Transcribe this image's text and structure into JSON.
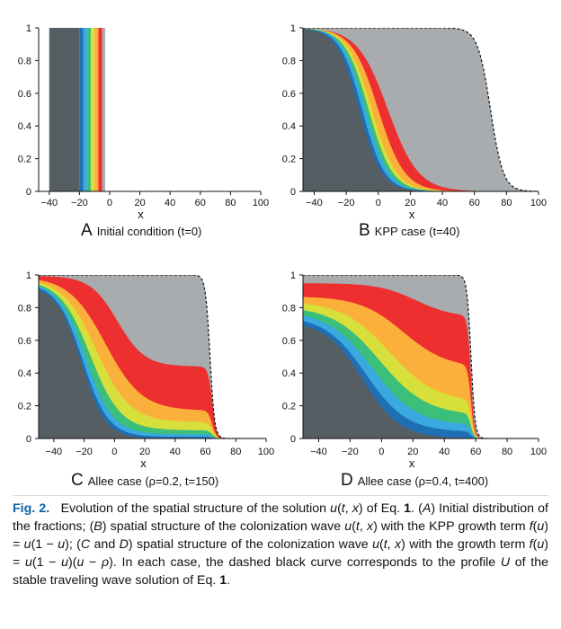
{
  "chart_data": [
    {
      "type": "area",
      "letter": "A",
      "title": "Initial condition (t=0)",
      "xlabel": "x",
      "xlim": [
        -47,
        100
      ],
      "ylim": [
        0,
        1
      ],
      "xticks": [
        "-40",
        "-20",
        "0",
        "20",
        "40",
        "60",
        "80",
        "100"
      ],
      "yticks": [
        "0",
        "0.2",
        "0.4",
        "0.6",
        "0.8",
        "1"
      ],
      "bands": [
        {
          "color": "#555e62",
          "x0": -40,
          "x1": -20
        },
        {
          "color": "#1f6fb5",
          "x0": -20,
          "x1": -17.5
        },
        {
          "color": "#39a9e0",
          "x0": -17.5,
          "x1": -15
        },
        {
          "color": "#3bbf7a",
          "x0": -15,
          "x1": -12.5
        },
        {
          "color": "#d7e03a",
          "x0": -12.5,
          "x1": -10
        },
        {
          "color": "#fbb03b",
          "x0": -10,
          "x1": -7.5
        },
        {
          "color": "#ed2f2f",
          "x0": -7.5,
          "x1": -5
        },
        {
          "color": "#a8acaf",
          "x0": -5,
          "x1": -3
        }
      ]
    },
    {
      "type": "area",
      "letter": "B",
      "title": "KPP case (t=40)",
      "xlabel": "x",
      "xlim": [
        -47,
        100
      ],
      "ylim": [
        0,
        1
      ],
      "xticks": [
        "-40",
        "-20",
        "0",
        "20",
        "40",
        "60",
        "80",
        "100"
      ],
      "yticks": [
        "0",
        "0.2",
        "0.4",
        "0.6",
        "0.8",
        "1"
      ],
      "boundaries_x": [
        -12,
        -10,
        -8,
        -6,
        -4,
        0,
        6,
        70
      ],
      "boundary_width": [
        7,
        7,
        7.2,
        7.4,
        7.6,
        8.2,
        9.5,
        4
      ],
      "dashed_profile": {
        "center": 70,
        "width": 4
      }
    },
    {
      "type": "area",
      "letter": "C",
      "title": "Allee case (ρ=0.2, t=150)",
      "xlabel": "x",
      "xlim": [
        -50,
        100
      ],
      "ylim": [
        0,
        1
      ],
      "xticks": [
        "-40",
        "-20",
        "0",
        "20",
        "40",
        "60",
        "80",
        "100"
      ],
      "yticks": [
        "0",
        "0.2",
        "0.4",
        "0.6",
        "0.8",
        "1"
      ],
      "layer_heights_at_far_left": [
        0.93,
        0.95,
        0.96,
        0.97,
        0.98,
        0.99,
        0.995,
        1.0
      ],
      "layer_plateaus": [
        0.0,
        0.01,
        0.025,
        0.05,
        0.1,
        0.17,
        0.44,
        1.0
      ],
      "dashed_profile": {
        "center": 63,
        "width": 1.5
      }
    },
    {
      "type": "area",
      "letter": "D",
      "title": "Allee case (ρ=0.4, t=400)",
      "xlabel": "x",
      "xlim": [
        -50,
        100
      ],
      "ylim": [
        0,
        1
      ],
      "xticks": [
        "-40",
        "-20",
        "0",
        "20",
        "40",
        "60",
        "80",
        "100"
      ],
      "yticks": [
        "0",
        "0.2",
        "0.4",
        "0.6",
        "0.8",
        "1"
      ],
      "layer_heights_at_far_left": [
        0.72,
        0.75,
        0.78,
        0.81,
        0.84,
        0.87,
        0.95,
        1.0
      ],
      "layer_plateaus": [
        0.0,
        0.04,
        0.08,
        0.14,
        0.22,
        0.43,
        0.74,
        1.0
      ],
      "dashed_profile": {
        "center": 57,
        "width": 1.3
      }
    }
  ],
  "colors": [
    "#555e62",
    "#1f6fb5",
    "#39a9e0",
    "#3bbf7a",
    "#d7e03a",
    "#fbb03b",
    "#ed2f2f",
    "#a8acaf"
  ],
  "caption": {
    "lead": "Fig. 2.",
    "html": "Evolution of the spatial structure of the solution <i>u</i>(<i>t</i>, <i>x</i>) of Eq. <b>1</b>. (<i>A</i>) Initial distribution of the fractions; (<i>B</i>) spatial structure of the colonization wave <i>u</i>(<i>t</i>, <i>x</i>) with the KPP growth term <i>f</i>(<i>u</i>) = <i>u</i>(1 − <i>u</i>); (<i>C</i> and <i>D</i>) spatial structure of the colonization wave <i>u</i>(<i>t</i>, <i>x</i>) with the growth term <i>f</i>(<i>u</i>) = <i>u</i>(1 − <i>u</i>)(<i>u</i> − <i>ρ</i>). In each case, the dashed black curve corresponds to the profile <i>U</i> of the stable traveling wave solution of Eq. <b>1</b>."
  }
}
